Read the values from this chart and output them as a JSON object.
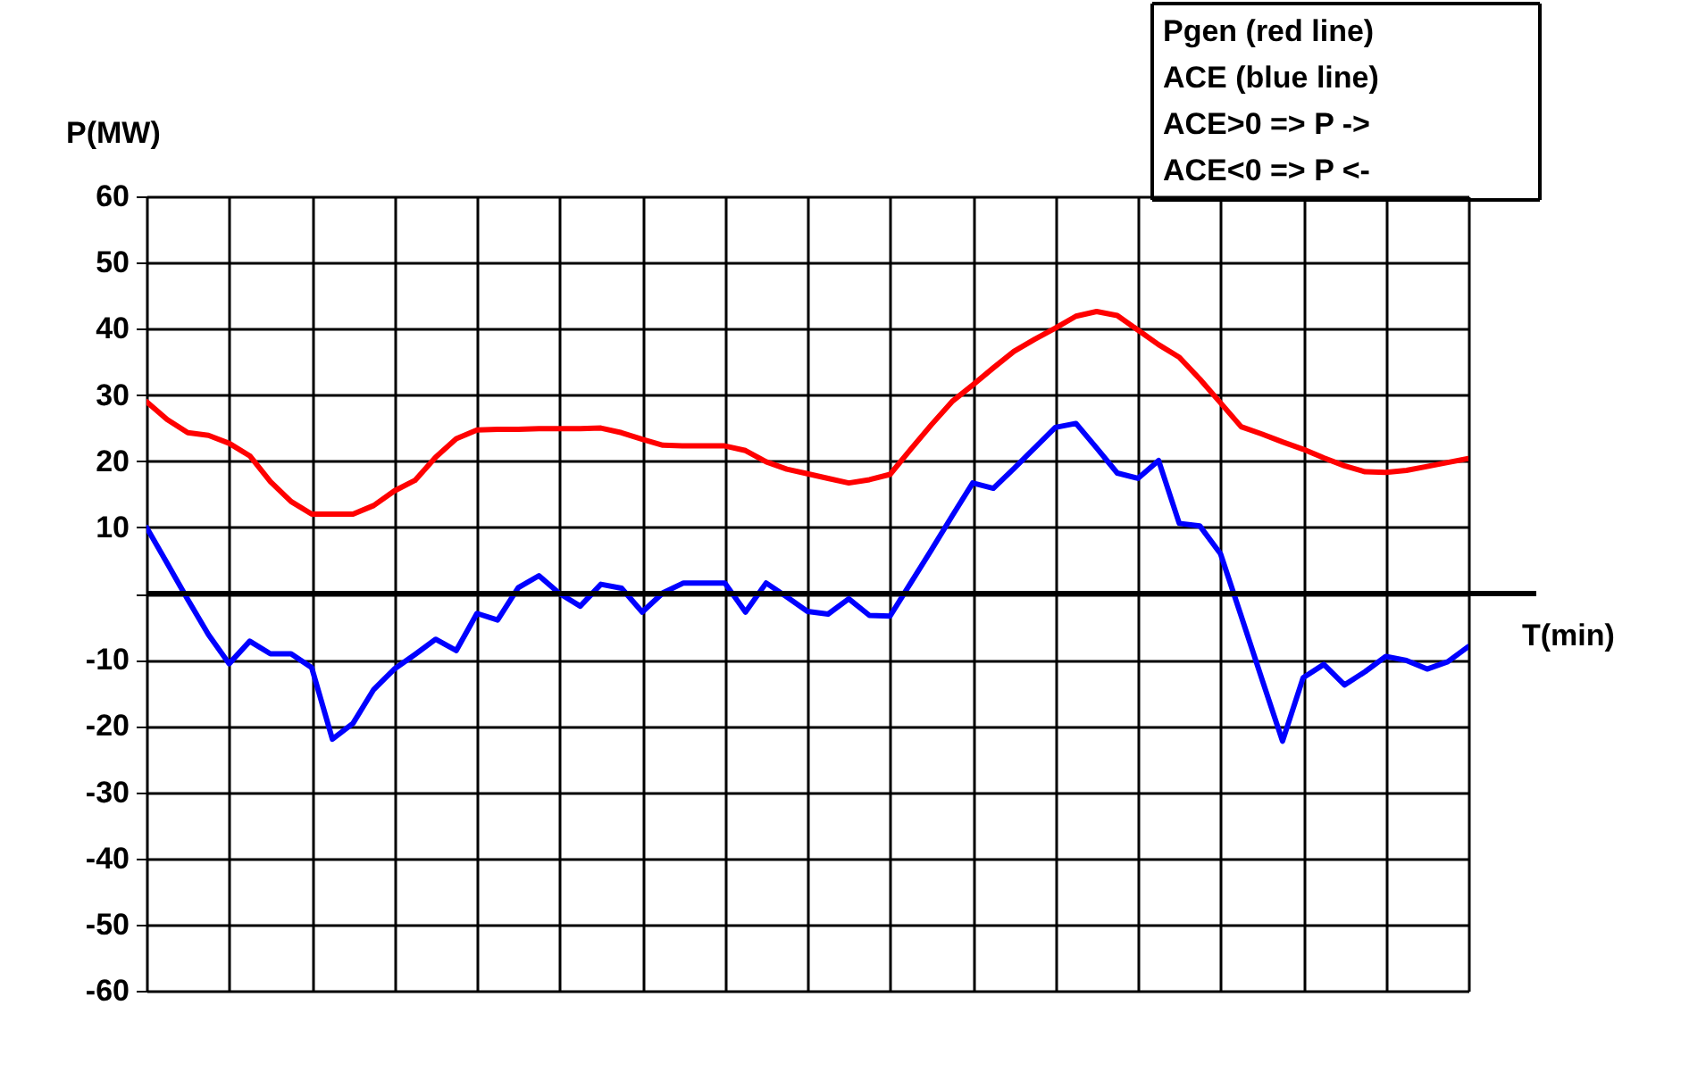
{
  "chart_data": {
    "type": "line",
    "ylabel": "P(MW)",
    "xlabel": "T(min)",
    "categories": [
      null,
      null,
      null,
      null,
      null,
      null,
      null,
      null,
      null,
      null,
      null,
      null,
      null,
      null,
      null,
      null,
      null,
      null,
      null,
      null,
      null,
      null,
      null,
      null,
      null,
      null,
      null,
      null,
      null,
      null,
      null,
      null,
      null,
      null,
      null,
      null,
      null,
      null,
      null,
      null,
      null,
      null,
      null,
      null,
      null,
      null,
      null,
      null,
      null,
      null,
      null,
      null,
      null,
      null,
      null,
      null,
      null,
      null,
      null,
      null,
      null,
      null,
      null,
      null,
      null
    ],
    "ylim": [
      -60,
      60
    ],
    "yticks": [
      -60,
      -50,
      -40,
      -30,
      -20,
      -10,
      {
        "value": 0,
        "label": null
      },
      10,
      20,
      30,
      40,
      50,
      60
    ],
    "tick_labels": "y",
    "grid": true,
    "marker": "none",
    "line_style": "solid",
    "ref_lines": [
      {
        "axis": "y",
        "value": 0,
        "color": "#000000"
      }
    ],
    "annotations": [
      "Pgen (red line)",
      "ACE (blue line)",
      "ACE>0 => P  ->",
      "ACE<0 => P <-"
    ],
    "series": [
      {
        "color": "#ff0000",
        "values": [
          29,
          26.3,
          24.3,
          23.9,
          22.7,
          20.8,
          16.9,
          13.9,
          12,
          12,
          12,
          13.3,
          15.5,
          17.1,
          20.6,
          23.4,
          24.7,
          24.8,
          24.8,
          24.9,
          24.9,
          24.9,
          25,
          24.3,
          23.3,
          22.4,
          22.3,
          22.3,
          22.3,
          21.6,
          19.9,
          18.8,
          18.1,
          17.4,
          16.7,
          17.2,
          18,
          21.8,
          25.5,
          29,
          31.5,
          34.1,
          36.6,
          38.4,
          40.1,
          41.9,
          42.6,
          42,
          39.8,
          37.6,
          35.7,
          32.4,
          28.8,
          25.2,
          24.1,
          22.9,
          21.8,
          20.5,
          19.3,
          18.4,
          18.3,
          18.6,
          19.2,
          19.8,
          20.4
        ]
      },
      {
        "color": "#0000ff",
        "values": [
          10,
          4.6,
          -0.9,
          -6.2,
          -10.6,
          -7.2,
          -9.1,
          -9.1,
          -11.2,
          -22,
          -19.6,
          -14.5,
          -11.4,
          -9.2,
          -6.9,
          -8.6,
          -3,
          -4,
          0.9,
          2.7,
          0,
          -1.9,
          1.4,
          0.8,
          -2.8,
          0.1,
          1.6,
          1.6,
          1.6,
          -2.8,
          1.6,
          -0.5,
          -2.7,
          -3.1,
          -0.8,
          -3.3,
          -3.4,
          1.6,
          6.6,
          11.7,
          16.7,
          15.9,
          18.9,
          22,
          25.1,
          25.7,
          22,
          18.2,
          17.4,
          20.1,
          10.6,
          10.2,
          6,
          -3.4,
          -12.9,
          -22.3,
          -12.7,
          -10.7,
          -13.8,
          -11.8,
          -9.5,
          -10.1,
          -11.4,
          -10.3,
          -8
        ]
      }
    ]
  }
}
